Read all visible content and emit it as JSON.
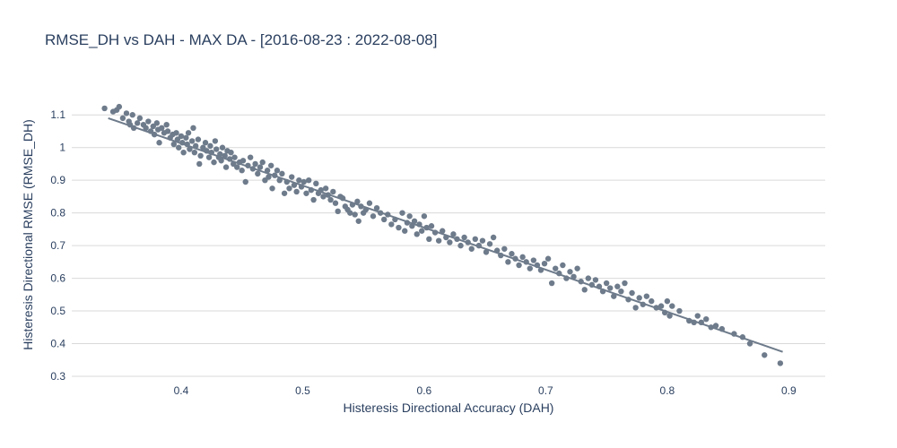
{
  "chart_data": {
    "type": "scatter",
    "title": "RMSE_DH vs DAH - MAX DA - [2016-08-23 : 2022-08-08]",
    "xlabel": "Histeresis Directional Accuracy (DAH)",
    "ylabel": "Histeresis Directional RMSE (RMSE_DH)",
    "xlim": [
      0.31,
      0.93
    ],
    "ylim": [
      0.3,
      1.15
    ],
    "xticks": [
      0.4,
      0.5,
      0.6,
      0.7,
      0.8,
      0.9
    ],
    "yticks": [
      0.3,
      0.4,
      0.5,
      0.6,
      0.7,
      0.8,
      0.9,
      1,
      1.1
    ],
    "xtick_labels": [
      "0.4",
      "0.5",
      "0.6",
      "0.7",
      "0.8",
      "0.9"
    ],
    "ytick_labels": [
      "0.3",
      "0.4",
      "0.5",
      "0.6",
      "0.7",
      "0.8",
      "0.9",
      "1",
      "1.1"
    ],
    "grid": true,
    "marker_color": "#6e7b8b",
    "line_color": "#6e7b8b",
    "trendline": {
      "x": [
        0.34,
        0.895
      ],
      "y": [
        1.09,
        0.375
      ]
    },
    "points": [
      [
        0.337,
        1.12
      ],
      [
        0.344,
        1.11
      ],
      [
        0.347,
        1.115
      ],
      [
        0.349,
        1.125
      ],
      [
        0.352,
        1.09
      ],
      [
        0.355,
        1.105
      ],
      [
        0.357,
        1.08
      ],
      [
        0.358,
        1.07
      ],
      [
        0.36,
        1.1
      ],
      [
        0.361,
        1.06
      ],
      [
        0.364,
        1.075
      ],
      [
        0.366,
        1.09
      ],
      [
        0.369,
        1.07
      ],
      [
        0.371,
        1.06
      ],
      [
        0.373,
        1.08
      ],
      [
        0.375,
        1.05
      ],
      [
        0.377,
        1.065
      ],
      [
        0.378,
        1.04
      ],
      [
        0.38,
        1.075
      ],
      [
        0.381,
        1.055
      ],
      [
        0.382,
        1.015
      ],
      [
        0.384,
        1.06
      ],
      [
        0.386,
        1.045
      ],
      [
        0.388,
        1.07
      ],
      [
        0.389,
        1.05
      ],
      [
        0.391,
        1.03
      ],
      [
        0.393,
        1.04
      ],
      [
        0.394,
        1.01
      ],
      [
        0.396,
        1.045
      ],
      [
        0.397,
        1.025
      ],
      [
        0.398,
        1.0
      ],
      [
        0.4,
        1.035
      ],
      [
        0.401,
        1.015
      ],
      [
        0.402,
        0.985
      ],
      [
        0.404,
        1.03
      ],
      [
        0.405,
        1.01
      ],
      [
        0.406,
        1.045
      ],
      [
        0.407,
        0.995
      ],
      [
        0.409,
        1.02
      ],
      [
        0.41,
        1.06
      ],
      [
        0.411,
        0.985
      ],
      [
        0.412,
        1.005
      ],
      [
        0.414,
        1.025
      ],
      [
        0.415,
        0.95
      ],
      [
        0.416,
        0.975
      ],
      [
        0.418,
        1.0
      ],
      [
        0.42,
        1.015
      ],
      [
        0.421,
        0.99
      ],
      [
        0.423,
        0.97
      ],
      [
        0.424,
        1.005
      ],
      [
        0.425,
        0.985
      ],
      [
        0.427,
        0.955
      ],
      [
        0.428,
        1.02
      ],
      [
        0.429,
        0.995
      ],
      [
        0.431,
        0.97
      ],
      [
        0.432,
        0.98
      ],
      [
        0.433,
        0.96
      ],
      [
        0.434,
        1.0
      ],
      [
        0.436,
        0.975
      ],
      [
        0.437,
        0.94
      ],
      [
        0.438,
        0.99
      ],
      [
        0.44,
        0.965
      ],
      [
        0.441,
        0.985
      ],
      [
        0.443,
        0.95
      ],
      [
        0.444,
        0.97
      ],
      [
        0.446,
        0.94
      ],
      [
        0.448,
        0.955
      ],
      [
        0.45,
        0.93
      ],
      [
        0.451,
        0.96
      ],
      [
        0.453,
        0.895
      ],
      [
        0.455,
        0.945
      ],
      [
        0.457,
        0.97
      ],
      [
        0.459,
        0.935
      ],
      [
        0.461,
        0.95
      ],
      [
        0.463,
        0.92
      ],
      [
        0.465,
        0.94
      ],
      [
        0.467,
        0.955
      ],
      [
        0.469,
        0.9
      ],
      [
        0.471,
        0.93
      ],
      [
        0.472,
        0.91
      ],
      [
        0.474,
        0.945
      ],
      [
        0.475,
        0.875
      ],
      [
        0.477,
        0.915
      ],
      [
        0.479,
        0.93
      ],
      [
        0.481,
        0.9
      ],
      [
        0.483,
        0.92
      ],
      [
        0.485,
        0.86
      ],
      [
        0.487,
        0.895
      ],
      [
        0.489,
        0.875
      ],
      [
        0.491,
        0.91
      ],
      [
        0.493,
        0.885
      ],
      [
        0.495,
        0.865
      ],
      [
        0.497,
        0.9
      ],
      [
        0.499,
        0.88
      ],
      [
        0.501,
        0.895
      ],
      [
        0.503,
        0.86
      ],
      [
        0.505,
        0.9
      ],
      [
        0.507,
        0.87
      ],
      [
        0.509,
        0.84
      ],
      [
        0.511,
        0.89
      ],
      [
        0.513,
        0.86
      ],
      [
        0.515,
        0.87
      ],
      [
        0.517,
        0.85
      ],
      [
        0.519,
        0.875
      ],
      [
        0.521,
        0.855
      ],
      [
        0.523,
        0.84
      ],
      [
        0.525,
        0.865
      ],
      [
        0.527,
        0.83
      ],
      [
        0.529,
        0.805
      ],
      [
        0.531,
        0.85
      ],
      [
        0.533,
        0.845
      ],
      [
        0.535,
        0.82
      ],
      [
        0.537,
        0.81
      ],
      [
        0.539,
        0.8
      ],
      [
        0.541,
        0.825
      ],
      [
        0.543,
        0.795
      ],
      [
        0.545,
        0.835
      ],
      [
        0.546,
        0.775
      ],
      [
        0.548,
        0.82
      ],
      [
        0.55,
        0.8
      ],
      [
        0.552,
        0.81
      ],
      [
        0.555,
        0.83
      ],
      [
        0.558,
        0.79
      ],
      [
        0.561,
        0.815
      ],
      [
        0.564,
        0.8
      ],
      [
        0.567,
        0.78
      ],
      [
        0.57,
        0.795
      ],
      [
        0.573,
        0.765
      ],
      [
        0.576,
        0.78
      ],
      [
        0.579,
        0.755
      ],
      [
        0.582,
        0.8
      ],
      [
        0.584,
        0.745
      ],
      [
        0.586,
        0.77
      ],
      [
        0.588,
        0.79
      ],
      [
        0.59,
        0.76
      ],
      [
        0.592,
        0.775
      ],
      [
        0.594,
        0.735
      ],
      [
        0.596,
        0.765
      ],
      [
        0.598,
        0.745
      ],
      [
        0.6,
        0.79
      ],
      [
        0.602,
        0.755
      ],
      [
        0.604,
        0.72
      ],
      [
        0.606,
        0.76
      ],
      [
        0.609,
        0.74
      ],
      [
        0.612,
        0.715
      ],
      [
        0.615,
        0.745
      ],
      [
        0.618,
        0.725
      ],
      [
        0.621,
        0.71
      ],
      [
        0.624,
        0.735
      ],
      [
        0.627,
        0.72
      ],
      [
        0.63,
        0.7
      ],
      [
        0.633,
        0.725
      ],
      [
        0.636,
        0.71
      ],
      [
        0.639,
        0.69
      ],
      [
        0.642,
        0.72
      ],
      [
        0.645,
        0.7
      ],
      [
        0.648,
        0.715
      ],
      [
        0.651,
        0.68
      ],
      [
        0.654,
        0.705
      ],
      [
        0.657,
        0.725
      ],
      [
        0.66,
        0.685
      ],
      [
        0.663,
        0.67
      ],
      [
        0.666,
        0.69
      ],
      [
        0.669,
        0.65
      ],
      [
        0.672,
        0.675
      ],
      [
        0.675,
        0.66
      ],
      [
        0.678,
        0.64
      ],
      [
        0.681,
        0.665
      ],
      [
        0.684,
        0.65
      ],
      [
        0.687,
        0.63
      ],
      [
        0.69,
        0.655
      ],
      [
        0.693,
        0.64
      ],
      [
        0.696,
        0.625
      ],
      [
        0.699,
        0.645
      ],
      [
        0.702,
        0.66
      ],
      [
        0.705,
        0.585
      ],
      [
        0.708,
        0.63
      ],
      [
        0.711,
        0.615
      ],
      [
        0.714,
        0.64
      ],
      [
        0.717,
        0.6
      ],
      [
        0.72,
        0.62
      ],
      [
        0.723,
        0.605
      ],
      [
        0.726,
        0.63
      ],
      [
        0.729,
        0.59
      ],
      [
        0.732,
        0.565
      ],
      [
        0.735,
        0.6
      ],
      [
        0.738,
        0.58
      ],
      [
        0.741,
        0.595
      ],
      [
        0.744,
        0.575
      ],
      [
        0.747,
        0.56
      ],
      [
        0.75,
        0.585
      ],
      [
        0.753,
        0.57
      ],
      [
        0.756,
        0.545
      ],
      [
        0.759,
        0.575
      ],
      [
        0.762,
        0.56
      ],
      [
        0.765,
        0.585
      ],
      [
        0.768,
        0.535
      ],
      [
        0.771,
        0.555
      ],
      [
        0.774,
        0.51
      ],
      [
        0.777,
        0.54
      ],
      [
        0.78,
        0.52
      ],
      [
        0.783,
        0.545
      ],
      [
        0.787,
        0.53
      ],
      [
        0.791,
        0.51
      ],
      [
        0.795,
        0.515
      ],
      [
        0.798,
        0.495
      ],
      [
        0.8,
        0.53
      ],
      [
        0.802,
        0.485
      ],
      [
        0.804,
        0.515
      ],
      [
        0.81,
        0.5
      ],
      [
        0.818,
        0.47
      ],
      [
        0.822,
        0.465
      ],
      [
        0.825,
        0.485
      ],
      [
        0.828,
        0.465
      ],
      [
        0.832,
        0.475
      ],
      [
        0.836,
        0.45
      ],
      [
        0.84,
        0.455
      ],
      [
        0.845,
        0.445
      ],
      [
        0.855,
        0.43
      ],
      [
        0.862,
        0.42
      ],
      [
        0.868,
        0.4
      ],
      [
        0.88,
        0.365
      ],
      [
        0.893,
        0.34
      ]
    ]
  }
}
